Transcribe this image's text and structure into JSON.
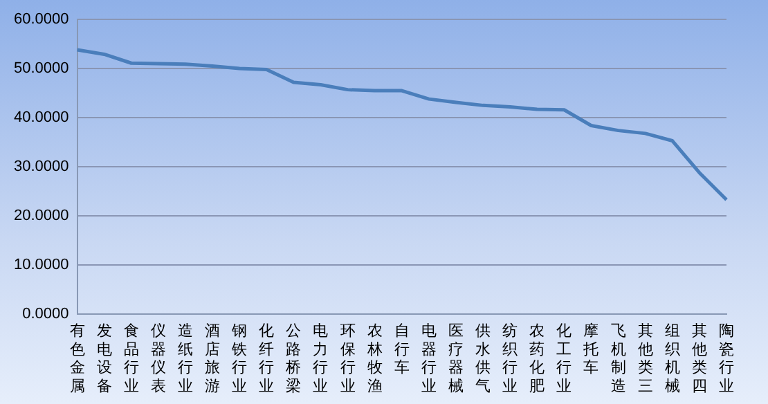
{
  "chart_data": {
    "type": "line",
    "categories": [
      "有色金属",
      "发电设备",
      "食品行业",
      "仪器仪表",
      "造纸行业",
      "酒店旅游",
      "钢铁行业",
      "化纤行业",
      "公路桥梁",
      "电力行业",
      "环保行业",
      "农林牧渔",
      "自行车",
      "电器行业",
      "医疗器械",
      "供水供气",
      "纺织行业",
      "农药化肥",
      "化工行业",
      "摩托车",
      "飞机制造",
      "其他类三",
      "组织机械",
      "其他类四",
      "陶瓷行业"
    ],
    "series": [
      {
        "color": "#4a7ebb",
        "values": [
          53.8,
          52.9,
          51.1,
          51.0,
          50.9,
          50.5,
          50.0,
          49.8,
          47.2,
          46.7,
          45.7,
          45.5,
          45.5,
          43.8,
          43.1,
          42.5,
          42.2,
          41.7,
          41.6,
          38.4,
          37.4,
          36.8,
          35.3,
          28.8,
          23.3
        ]
      }
    ],
    "ylim": [
      0,
      60
    ],
    "yticks": [
      {
        "value": 0,
        "label": "0.0000"
      },
      {
        "value": 10,
        "label": "10.0000"
      },
      {
        "value": 20,
        "label": "20.0000"
      },
      {
        "value": 30,
        "label": "30.0000"
      },
      {
        "value": 40,
        "label": "40.0000"
      },
      {
        "value": 50,
        "label": "50.0000"
      },
      {
        "value": 60,
        "label": "60.0000"
      }
    ],
    "grid": "y",
    "legend": false,
    "marker": "none",
    "line_style": "solid"
  }
}
